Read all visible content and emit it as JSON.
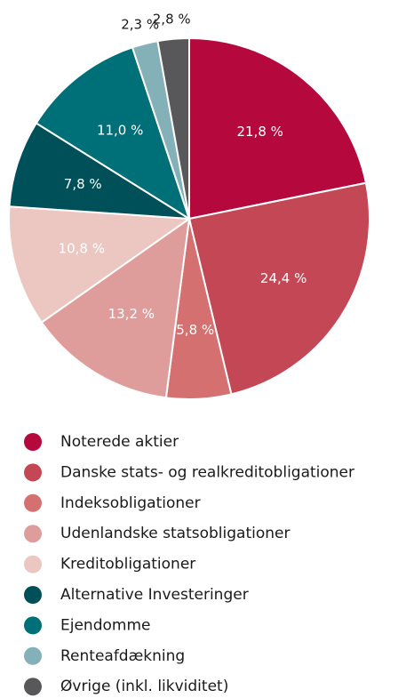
{
  "chart_data": {
    "type": "pie",
    "categories": [
      "Noterede aktier",
      "Danske stats- og realkreditobligationer",
      "Indeksobligationer",
      "Udenlandske statsobligationer",
      "Kreditobligationer",
      "Alternative Investeringer",
      "Ejendomme",
      "Renteafdækning",
      "Øvrige (inkl. likviditet)"
    ],
    "values": [
      21.8,
      24.4,
      5.8,
      13.2,
      10.8,
      7.8,
      11.0,
      2.3,
      2.8
    ],
    "value_labels": [
      "21,8 %",
      "24,4 %",
      "5,8 %",
      "13,2 %",
      "10,8 %",
      "7,8 %",
      "11,0 %",
      "2,3 %",
      "2,8 %"
    ],
    "colors": [
      "#b5093e",
      "#c44756",
      "#d4706f",
      "#de9d9b",
      "#ecc7c2",
      "#00505a",
      "#007078",
      "#84b0b8",
      "#58585a"
    ],
    "legend": "bottom"
  }
}
